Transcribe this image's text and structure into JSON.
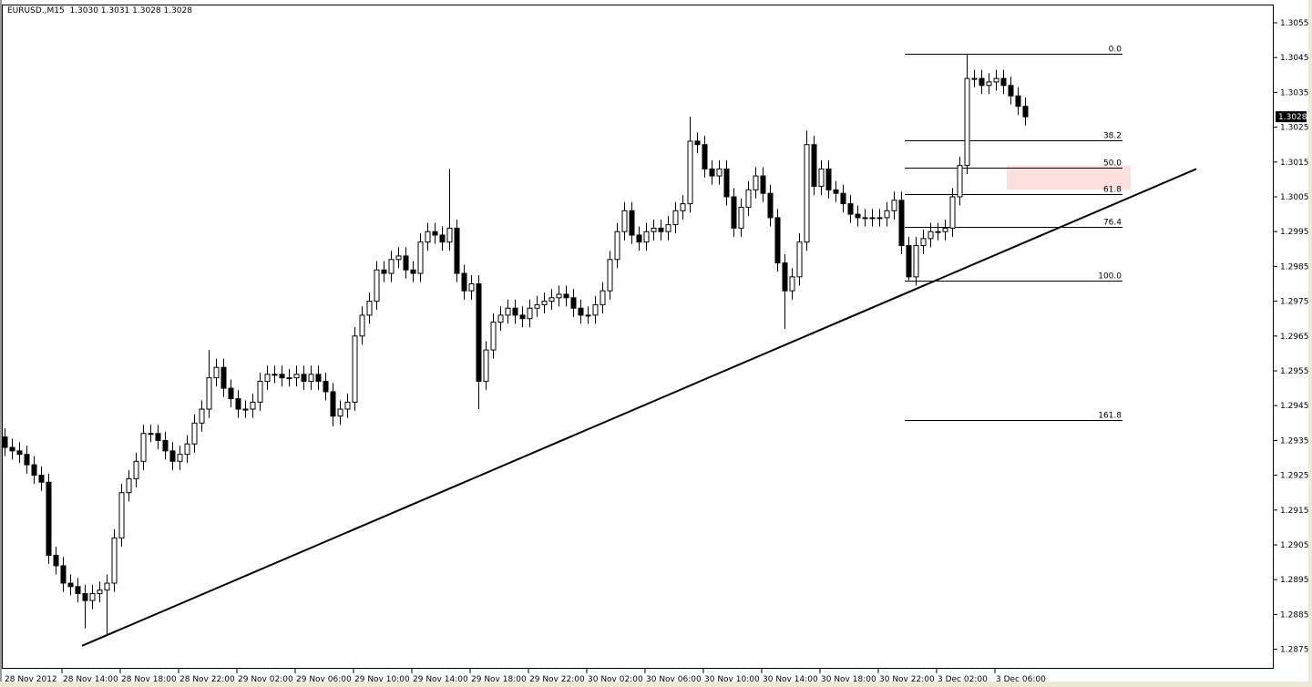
{
  "header": {
    "symbol": "EURUSD.,M15",
    "ohlc": "1.3030 1.3031 1.3028 1.3028"
  },
  "chart_data": {
    "type": "candlestick",
    "title": "EURUSD.,M15  1.3030 1.3031 1.3028 1.3028",
    "xlabel": "",
    "ylabel": "",
    "ylim": [
      1.2869,
      1.306
    ],
    "grid": false,
    "y_ticks": [
      "1.3055",
      "1.3045",
      "1.3035",
      "1.3025",
      "1.3015",
      "1.3005",
      "1.2995",
      "1.2985",
      "1.2975",
      "1.2965",
      "1.2955",
      "1.2945",
      "1.2935",
      "1.2925",
      "1.2915",
      "1.2905",
      "1.2895",
      "1.2885",
      "1.2875"
    ],
    "x_ticks": [
      "28 Nov 2012",
      "28 Nov 14:00",
      "28 Nov 18:00",
      "28 Nov 22:00",
      "29 Nov 02:00",
      "29 Nov 06:00",
      "29 Nov 10:00",
      "29 Nov 14:00",
      "29 Nov 18:00",
      "29 Nov 22:00",
      "30 Nov 02:00",
      "30 Nov 06:00",
      "30 Nov 10:00",
      "30 Nov 14:00",
      "30 Nov 18:00",
      "30 Nov 22:00",
      "3 Dec 02:00",
      "3 Dec 06:00"
    ],
    "current_price": "1.3028",
    "close": [
      1.2933,
      1.2932,
      1.2931,
      1.2928,
      1.2925,
      1.2923,
      1.2902,
      1.2899,
      1.2894,
      1.2893,
      1.2891,
      1.2889,
      1.2891,
      1.2892,
      1.2894,
      1.2907,
      1.292,
      1.2924,
      1.2929,
      1.2937,
      1.2937,
      1.2935,
      1.2932,
      1.2929,
      1.2931,
      1.2934,
      1.294,
      1.2944,
      1.2953,
      1.2956,
      1.295,
      1.2947,
      1.2944,
      1.2944,
      1.2946,
      1.2952,
      1.2954,
      1.2954,
      1.2953,
      1.2953,
      1.2954,
      1.2952,
      1.2954,
      1.2952,
      1.2949,
      1.2942,
      1.2944,
      1.2946,
      1.2965,
      1.2971,
      1.2975,
      1.2984,
      1.2983,
      1.2987,
      1.2988,
      1.2984,
      1.2983,
      1.2992,
      1.2995,
      1.2994,
      1.2992,
      1.2996,
      1.2983,
      1.2978,
      1.298,
      1.2952,
      1.2961,
      1.2969,
      1.2971,
      1.2973,
      1.2971,
      1.297,
      1.2973,
      1.2974,
      1.2975,
      1.2976,
      1.2977,
      1.2976,
      1.2973,
      1.2971,
      1.2971,
      1.2974,
      1.2978,
      1.2987,
      1.2995,
      1.3001,
      1.2994,
      1.2992,
      1.2995,
      1.2996,
      1.2995,
      1.2997,
      1.3001,
      1.3003,
      1.3021,
      1.302,
      1.3013,
      1.3011,
      1.3013,
      1.3005,
      1.2996,
      1.3002,
      1.3007,
      1.3011,
      1.3006,
      1.2999,
      1.2986,
      1.2978,
      1.2982,
      1.2992,
      1.302,
      1.3008,
      1.3013,
      1.3007,
      1.3006,
      1.3003,
      1.3,
      1.2999,
      1.2999,
      1.2999,
      1.2999,
      1.3001,
      1.3004,
      1.2991,
      1.2982,
      1.2991,
      1.2993,
      1.2995,
      1.2995,
      1.2996,
      1.3005,
      1.3014,
      1.3039,
      1.3039,
      1.3037,
      1.3038,
      1.3039,
      1.3037,
      1.3034,
      1.3031,
      1.3028
    ],
    "wick_extremes": [
      {
        "index": 11,
        "low": 1.2881
      },
      {
        "index": 14,
        "low": 1.2879
      },
      {
        "index": 28,
        "high": 1.2961
      },
      {
        "index": 45,
        "low": 1.2939
      },
      {
        "index": 61,
        "high": 1.3013
      },
      {
        "index": 65,
        "low": 1.2944
      },
      {
        "index": 94,
        "high": 1.3028
      },
      {
        "index": 107,
        "low": 1.2967
      },
      {
        "index": 110,
        "high": 1.3024
      },
      {
        "index": 124,
        "low": 1.2981
      },
      {
        "index": 132,
        "high": 1.3046
      }
    ],
    "fibonacci": {
      "price_0": 1.3046,
      "price_100": 1.2981,
      "levels": [
        {
          "label": "0.0",
          "ratio": 0.0
        },
        {
          "label": "38.2",
          "ratio": 0.382
        },
        {
          "label": "50.0",
          "ratio": 0.5
        },
        {
          "label": "61.8",
          "ratio": 0.618
        },
        {
          "label": "76.4",
          "ratio": 0.764
        },
        {
          "label": "100.0",
          "ratio": 1.0
        },
        {
          "label": "161.8",
          "ratio": 1.618
        }
      ]
    },
    "trendline": {
      "from_price": 1.2876,
      "to_price": 1.3013
    },
    "zone": {
      "top": 1.3014,
      "bottom": 1.3007,
      "color": "#fde0dd"
    },
    "colors": {
      "bull_fill": "#ffffff",
      "bear_fill": "#000000",
      "outline": "#000000"
    }
  }
}
